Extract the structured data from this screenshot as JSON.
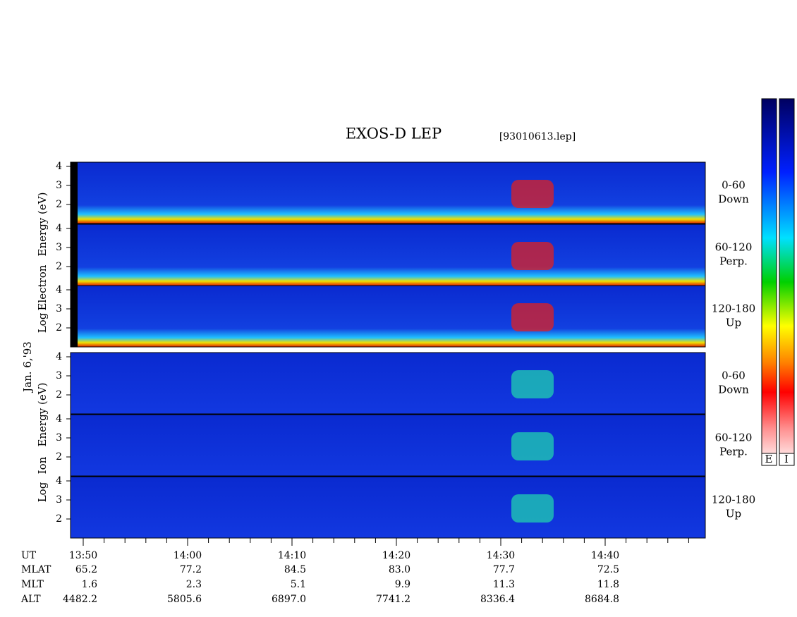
{
  "title": "EXOS-D LEP",
  "file": "[93010613.lep]",
  "date": "Jan. 6,'93",
  "electron_label": [
    "Log",
    "Electron",
    "Energy (eV)"
  ],
  "ion_label": [
    "Log",
    "Ion",
    "Energy (eV)"
  ],
  "panels": [
    {
      "angle": "0-60",
      "dir": "Down"
    },
    {
      "angle": "60-120",
      "dir": "Perp."
    },
    {
      "angle": "120-180",
      "dir": "Up"
    }
  ],
  "yticks": [
    4,
    3,
    2
  ],
  "colorbar_labels": [
    "E",
    "I"
  ],
  "rows": [
    {
      "label": "UT",
      "values": [
        "13:50",
        "14:00",
        "14:10",
        "14:20",
        "14:30",
        "14:40"
      ]
    },
    {
      "label": "MLAT",
      "values": [
        "65.2",
        "77.2",
        "84.5",
        "83.0",
        "77.7",
        "72.5"
      ]
    },
    {
      "label": "MLT",
      "values": [
        "1.6",
        "2.3",
        "5.1",
        "9.9",
        "11.3",
        "11.8"
      ]
    },
    {
      "label": "ALT",
      "values": [
        "4482.2",
        "5805.6",
        "6897.0",
        "7741.2",
        "8336.4",
        "8684.8"
      ]
    }
  ]
}
